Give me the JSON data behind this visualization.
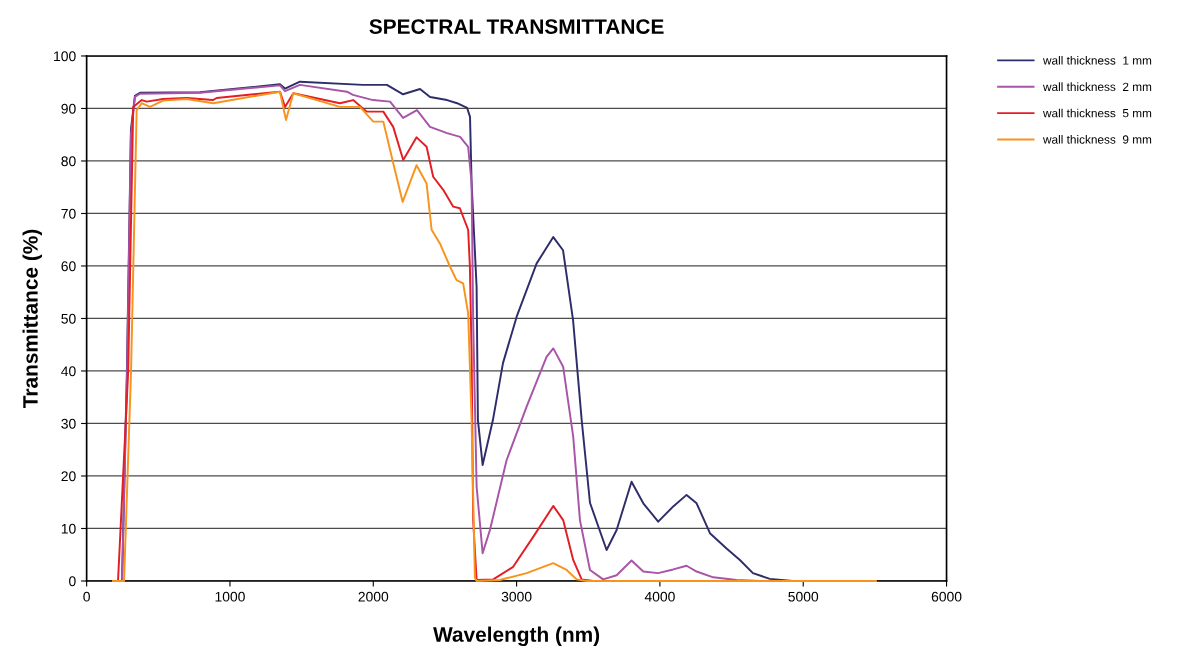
{
  "chart_data": {
    "type": "line",
    "title": "SPECTRAL TRANSMITTANCE",
    "xlabel": "Wavelength (nm)",
    "ylabel": "Transmittance (%)",
    "xlim": [
      0,
      6000
    ],
    "xticks": [
      0,
      1000,
      2000,
      3000,
      4000,
      5000,
      6000
    ],
    "ylim": [
      0,
      100
    ],
    "yticks": [
      0,
      10,
      20,
      30,
      40,
      50,
      60,
      70,
      80,
      90,
      100
    ],
    "grid": "y",
    "legend": "top right",
    "marker": "none",
    "line_style": "solid",
    "series": [
      {
        "name": "wall thickness  1 mm",
        "color": "#2e2d6b",
        "x": [
          184,
          247,
          281,
          309,
          337,
          372,
          791,
          1349,
          1384,
          1488,
          1927,
          2095,
          2208,
          2326,
          2396,
          2515,
          2585,
          2655,
          2675,
          2686,
          2721,
          2730,
          2763,
          2835,
          2905,
          3000,
          3140,
          3256,
          3324,
          3394,
          3454,
          3512,
          3628,
          3698,
          3802,
          3884,
          3988,
          4093,
          4186,
          4256,
          4349,
          4465,
          4558,
          4649,
          4767,
          4927,
          5507
        ],
        "values": [
          0,
          0,
          40,
          86,
          92.4,
          93,
          93.1,
          94.6,
          93.8,
          95.1,
          94.5,
          94.5,
          92.7,
          93.7,
          92.2,
          91.6,
          91.0,
          90.1,
          88.4,
          75.8,
          56,
          30.7,
          22.1,
          30.7,
          41.5,
          50.3,
          60.5,
          65.5,
          63,
          49.7,
          30.7,
          14.9,
          5.9,
          9.7,
          18.9,
          14.8,
          11.3,
          14.2,
          16.4,
          14.8,
          9.1,
          6.2,
          4.0,
          1.5,
          0.4,
          0,
          0
        ]
      },
      {
        "name": "wall thickness  2 mm",
        "color": "#a855a8",
        "x": [
          184,
          247,
          281,
          309,
          337,
          372,
          791,
          1349,
          1384,
          1488,
          1816,
          1858,
          1998,
          2117,
          2208,
          2305,
          2396,
          2515,
          2606,
          2662,
          2686,
          2697,
          2721,
          2763,
          2814,
          2930,
          3070,
          3209,
          3256,
          3325,
          3395,
          3442,
          3512,
          3604,
          3698,
          3802,
          3884,
          3988,
          4093,
          4186,
          4256,
          4372,
          4535,
          4698,
          5507
        ],
        "values": [
          0,
          0,
          38,
          85,
          92.2,
          92.8,
          93.0,
          94.4,
          93.3,
          94.5,
          93.2,
          92.6,
          91.6,
          91.3,
          88.2,
          89.7,
          86.5,
          85.3,
          84.6,
          82.7,
          75.8,
          49.7,
          18,
          5.3,
          9.7,
          23,
          33.2,
          42.7,
          44.3,
          40.8,
          27.5,
          11.6,
          2.1,
          0.3,
          1.1,
          3.9,
          1.8,
          1.5,
          2.2,
          2.9,
          1.8,
          0.7,
          0.2,
          0,
          0
        ]
      },
      {
        "name": "wall thickness  5 mm",
        "color": "#e31e24",
        "x": [
          184,
          219,
          290,
          325,
          384,
          419,
          534,
          698,
          881,
          907,
          1349,
          1384,
          1442,
          1767,
          1860,
          1954,
          2070,
          2139,
          2209,
          2302,
          2372,
          2418,
          2488,
          2558,
          2604,
          2662,
          2674,
          2686,
          2697,
          2721,
          2837,
          2976,
          3116,
          3256,
          3325,
          3395,
          3454,
          3535,
          5507
        ],
        "values": [
          0,
          0,
          40,
          90.3,
          91.6,
          91.3,
          91.8,
          92.0,
          91.6,
          92.0,
          93.2,
          90.3,
          92.9,
          91.0,
          91.6,
          89.4,
          89.4,
          86.5,
          80.2,
          84.5,
          82.7,
          77.0,
          74.5,
          71.3,
          71.0,
          66.9,
          60,
          43.4,
          11.6,
          0.2,
          0.3,
          2.7,
          8.4,
          14.3,
          11.6,
          4.0,
          0.3,
          0,
          0
        ]
      },
      {
        "name": "wall thickness  9 mm",
        "color": "#f7941d",
        "x": [
          184,
          261,
          310,
          349,
          384,
          442,
          534,
          698,
          884,
          1349,
          1391,
          1442,
          1767,
          1907,
          2000,
          2070,
          2139,
          2205,
          2302,
          2372,
          2407,
          2465,
          2535,
          2581,
          2627,
          2662,
          2686,
          2709,
          2721,
          2884,
          3070,
          3186,
          3256,
          3349,
          3419,
          3488,
          5507
        ],
        "values": [
          0,
          0,
          40,
          89.7,
          91.0,
          90.3,
          91.5,
          91.8,
          91.0,
          93.2,
          87.8,
          92.9,
          90.3,
          90.3,
          87.5,
          87.5,
          79.6,
          72.2,
          79.2,
          75.7,
          66.9,
          64.3,
          59.9,
          57.3,
          56.7,
          51,
          30.7,
          0.6,
          0,
          0.2,
          1.5,
          2.7,
          3.4,
          2.1,
          0.3,
          0,
          0
        ]
      }
    ]
  }
}
